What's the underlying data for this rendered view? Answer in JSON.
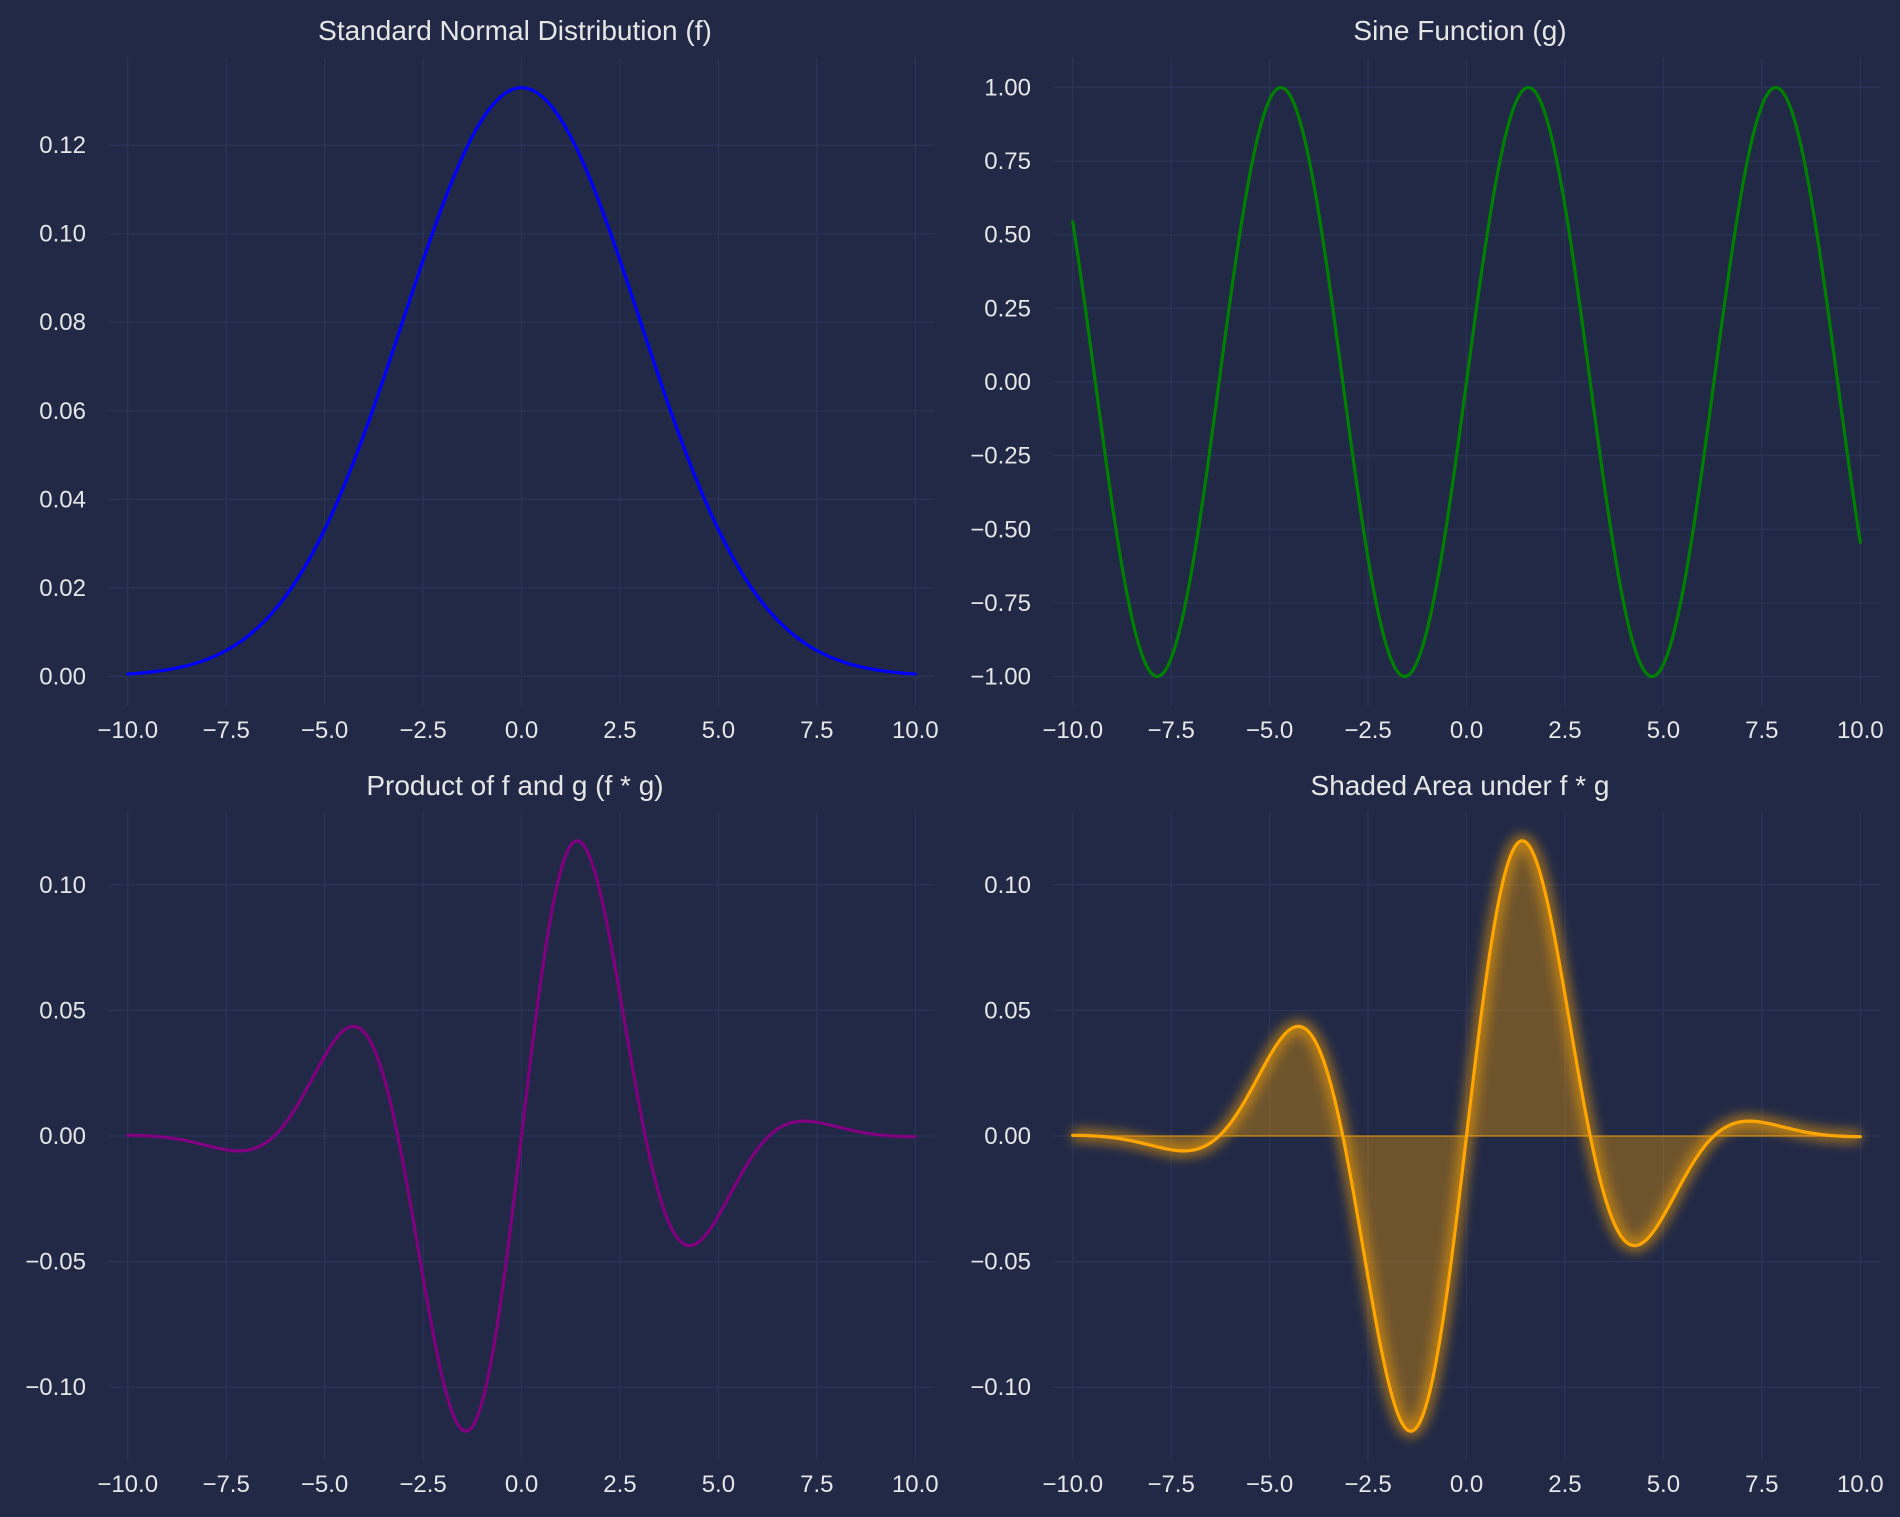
{
  "figure": {
    "background": "#212946",
    "grid_color": "#2A3459",
    "text_color": "#E6E6E6"
  },
  "chart_data": [
    {
      "id": "normal",
      "type": "line",
      "title": "Standard Normal Distribution (f)",
      "xlabel": "",
      "ylabel": "",
      "function": "f(x) = exp(-x^2 / (2*3^2)) / (3*sqrt(2*pi))",
      "x_range": [
        -10,
        10
      ],
      "sample_count": 400,
      "xlim": [
        -10.5,
        10.5
      ],
      "ylim": [
        -0.0067,
        0.1397
      ],
      "xticks": [
        -10,
        -7.5,
        -5,
        -2.5,
        0,
        2.5,
        5,
        7.5,
        10
      ],
      "xtick_labels": [
        "−10.0",
        "−7.5",
        "−5.0",
        "−2.5",
        "0.0",
        "2.5",
        "5.0",
        "7.5",
        "10.0"
      ],
      "yticks": [
        0,
        0.02,
        0.04,
        0.06,
        0.08,
        0.1,
        0.12
      ],
      "ytick_labels": [
        "0.00",
        "0.02",
        "0.04",
        "0.06",
        "0.08",
        "0.10",
        "0.12"
      ],
      "grid": true,
      "series": [
        {
          "color": "#0000FF"
        }
      ]
    },
    {
      "id": "sine",
      "type": "line",
      "title": "Sine Function (g)",
      "xlabel": "",
      "ylabel": "",
      "function": "g(x) = sin(x)",
      "x_range": [
        -10,
        10
      ],
      "sample_count": 400,
      "xlim": [
        -10.5,
        10.5
      ],
      "ylim": [
        -1.1,
        1.1
      ],
      "xticks": [
        -10,
        -7.5,
        -5,
        -2.5,
        0,
        2.5,
        5,
        7.5,
        10
      ],
      "xtick_labels": [
        "−10.0",
        "−7.5",
        "−5.0",
        "−2.5",
        "0.0",
        "2.5",
        "5.0",
        "7.5",
        "10.0"
      ],
      "yticks": [
        -1.0,
        -0.75,
        -0.5,
        -0.25,
        0,
        0.25,
        0.5,
        0.75,
        1.0
      ],
      "ytick_labels": [
        "−1.00",
        "−0.75",
        "−0.50",
        "−0.25",
        "0.00",
        "0.25",
        "0.50",
        "0.75",
        "1.00"
      ],
      "grid": true,
      "series": [
        {
          "color": "#008000"
        }
      ]
    },
    {
      "id": "product",
      "type": "line",
      "title": "Product of f and g (f * g)",
      "xlabel": "",
      "ylabel": "",
      "function": "f(x) * g(x)",
      "x_range": [
        -10,
        10
      ],
      "sample_count": 400,
      "xlim": [
        -10.5,
        10.5
      ],
      "ylim": [
        -0.129,
        0.129
      ],
      "xticks": [
        -10,
        -7.5,
        -5,
        -2.5,
        0,
        2.5,
        5,
        7.5,
        10
      ],
      "xtick_labels": [
        "−10.0",
        "−7.5",
        "−5.0",
        "−2.5",
        "0.0",
        "2.5",
        "5.0",
        "7.5",
        "10.0"
      ],
      "yticks": [
        -0.1,
        -0.05,
        0,
        0.05,
        0.1
      ],
      "ytick_labels": [
        "−0.10",
        "−0.05",
        "0.00",
        "0.05",
        "0.10"
      ],
      "grid": true,
      "series": [
        {
          "color": "#800080"
        }
      ]
    },
    {
      "id": "shaded",
      "type": "area",
      "title": "Shaded Area under f * g",
      "xlabel": "",
      "ylabel": "",
      "function": "f(x) * g(x)",
      "x_range": [
        -10,
        10
      ],
      "sample_count": 400,
      "xlim": [
        -10.5,
        10.5
      ],
      "ylim": [
        -0.129,
        0.129
      ],
      "xticks": [
        -10,
        -7.5,
        -5,
        -2.5,
        0,
        2.5,
        5,
        7.5,
        10
      ],
      "xtick_labels": [
        "−10.0",
        "−7.5",
        "−5.0",
        "−2.5",
        "0.0",
        "2.5",
        "5.0",
        "7.5",
        "10.0"
      ],
      "yticks": [
        -0.1,
        -0.05,
        0,
        0.05,
        0.1
      ],
      "ytick_labels": [
        "−0.10",
        "−0.05",
        "0.00",
        "0.05",
        "0.10"
      ],
      "grid": true,
      "glow": true,
      "series": [
        {
          "color": "#FFA500",
          "fill_color": "#FFA500",
          "fill_opacity": 0.35
        }
      ]
    }
  ]
}
